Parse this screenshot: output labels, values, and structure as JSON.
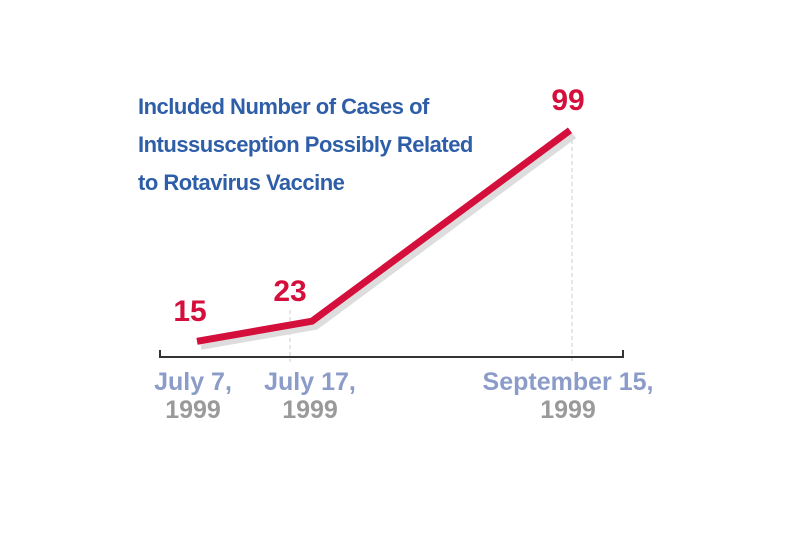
{
  "chart_data": {
    "type": "line",
    "title": [
      "Included Number of Cases of",
      "Intussusception Possibly Related",
      "to Rotavirus Vaccine"
    ],
    "categories": [
      "July 7, 1999",
      "July 17, 1999",
      "September 15, 1999"
    ],
    "values": [
      15,
      23,
      99
    ],
    "color": "#d40f3c"
  }
}
